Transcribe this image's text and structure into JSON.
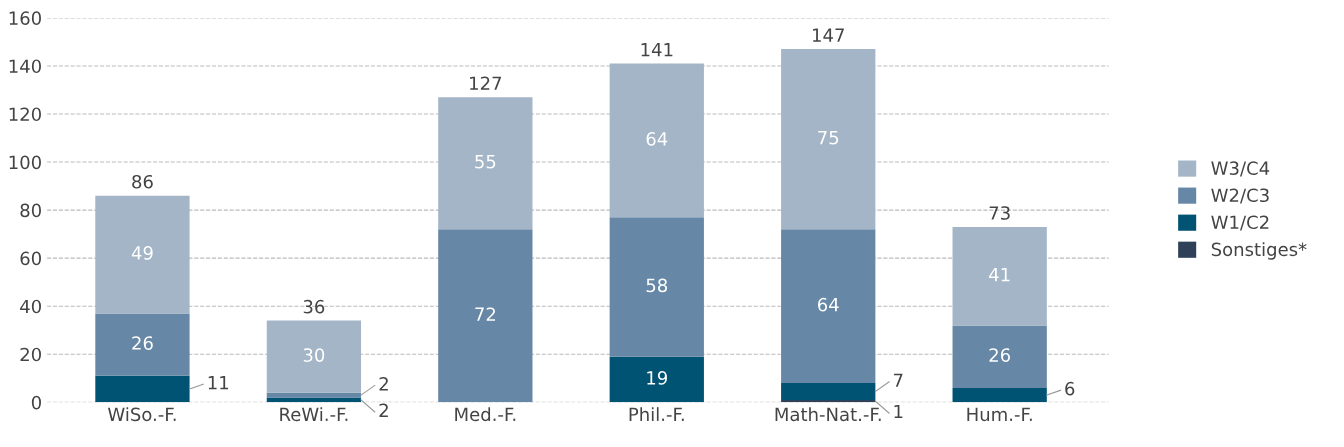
{
  "chart_data": {
    "type": "bar",
    "stacked": true,
    "categories": [
      "WiSo.-F.",
      "ReWi.-F.",
      "Med.-F.",
      "Phil.-F.",
      "Math-Nat.-F.",
      "Hum.-F."
    ],
    "series": [
      {
        "name": "Sonstiges*",
        "color": "#2e4158",
        "values": [
          0,
          0,
          0,
          0,
          1,
          0
        ],
        "value_labels": [
          null,
          null,
          null,
          null,
          "1",
          null
        ]
      },
      {
        "name": "W1/C2",
        "color": "#005373",
        "values": [
          11,
          2,
          0,
          19,
          7,
          6
        ],
        "value_labels": [
          "11",
          "2",
          null,
          "19",
          "7",
          "6"
        ]
      },
      {
        "name": "W2/C3",
        "color": "#6688a6",
        "values": [
          26,
          2,
          72,
          58,
          64,
          26
        ],
        "value_labels": [
          "26",
          "2",
          "72",
          "58",
          "64",
          "26"
        ]
      },
      {
        "name": "W3/C4",
        "color": "#a3b5c6",
        "values": [
          49,
          30,
          55,
          64,
          75,
          41
        ],
        "value_labels": [
          "49",
          "30",
          "55",
          "64",
          "75",
          "41"
        ]
      }
    ],
    "totals": [
      "86",
      "36",
      "127",
      "141",
      "147",
      "73"
    ],
    "ylim": [
      0,
      160
    ],
    "yticks": [
      0,
      20,
      40,
      60,
      80,
      100,
      120,
      140,
      160
    ],
    "grid": "y",
    "legend": "right"
  }
}
